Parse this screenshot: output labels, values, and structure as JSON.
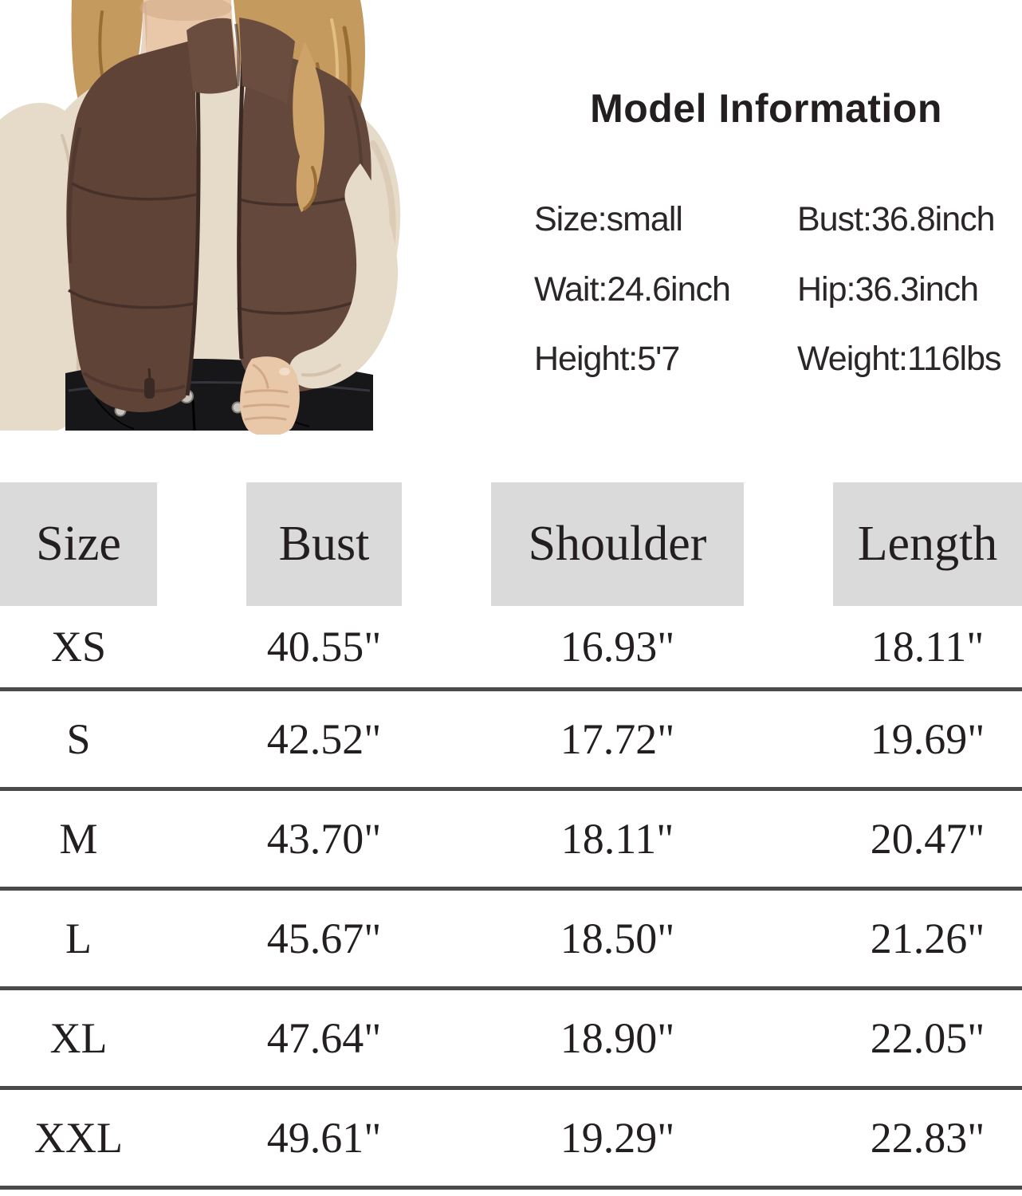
{
  "photo": {
    "description": "Model wearing an open brown cropped puffer vest with stand collar over a beige long-sleeve top and black jeans",
    "colors": {
      "vest": "#5f4337",
      "vest_light": "#64483b",
      "vest_shadow": "#46312a",
      "collar": "#6b4d3f",
      "top": "#e6dac8",
      "top_shadow": "#d3c2ac",
      "skin": "#e9c7a9",
      "skin_shadow": "#d2a987",
      "hair": "#c49a5e",
      "hair_shadow": "#9a6d34",
      "hair_highlight": "#e2be85",
      "jeans": "#17171a",
      "button": "#c9c5be"
    }
  },
  "model_info": {
    "title": "Model Information",
    "entries": [
      "Size:small",
      "Bust:36.8inch",
      "Wait:24.6inch",
      "Hip:36.3inch",
      "Height:5'7",
      "Weight:116lbs"
    ]
  },
  "size_chart": {
    "type": "table",
    "columns": [
      "Size",
      "Bust",
      "Shoulder",
      "Length"
    ],
    "rows": [
      [
        "XS",
        "40.55\"",
        "16.93\"",
        "18.11\""
      ],
      [
        "S",
        "42.52\"",
        "17.72\"",
        "19.69\""
      ],
      [
        "M",
        "43.70\"",
        "18.11\"",
        "20.47\""
      ],
      [
        "L",
        "45.67\"",
        "18.50\"",
        "21.26\""
      ],
      [
        "XL",
        "47.64\"",
        "18.90\"",
        "22.05\""
      ],
      [
        "XXL",
        "49.61\"",
        "19.29\"",
        "22.83\""
      ]
    ],
    "styles": {
      "header_background": "#dadada",
      "divider": "#4a4a4a",
      "text": "#231f20"
    }
  }
}
